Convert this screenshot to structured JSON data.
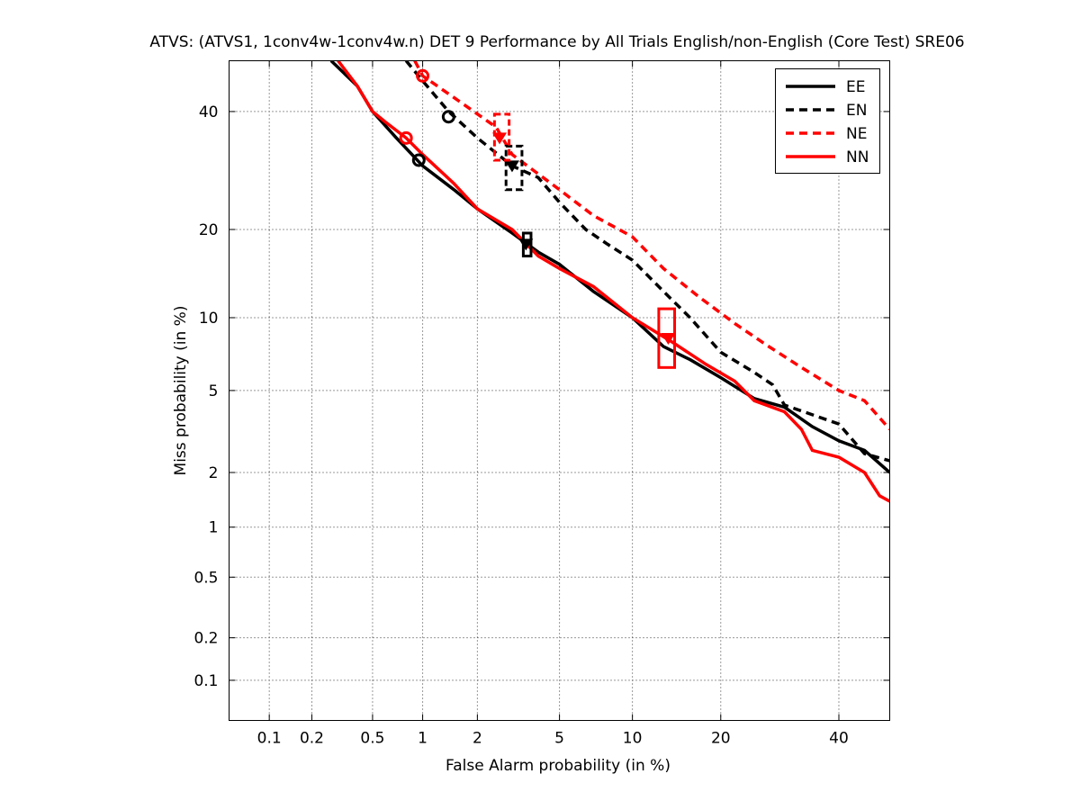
{
  "chart_data": {
    "type": "line",
    "title": "ATVS: (ATVS1, 1conv4w-1conv4w.n) DET 9 Performance by All Trials English/non-English (Core Test) SRE06",
    "xlabel": "False Alarm probability (in %)",
    "ylabel": "Miss probability (in %)",
    "xscale": "probit",
    "yscale": "probit",
    "xlim": [
      0.05,
      50
    ],
    "ylim": [
      0.05,
      50
    ],
    "xticks": [
      0.1,
      0.2,
      0.5,
      1,
      2,
      5,
      10,
      20,
      40
    ],
    "xtick_labels": [
      "0.1",
      "0.2",
      "0.5",
      "1",
      "2",
      "5",
      "10",
      "20",
      "40"
    ],
    "yticks": [
      0.1,
      0.2,
      0.5,
      1,
      2,
      5,
      10,
      20,
      40
    ],
    "ytick_labels": [
      "0.1",
      "0.2",
      "0.5",
      "1",
      "2",
      "5",
      "10",
      "20",
      "40"
    ],
    "grid": true,
    "legend_position": "top-right",
    "series": [
      {
        "name": "EE",
        "color": "#000000",
        "style": "solid",
        "points": [
          [
            0.27,
            50
          ],
          [
            0.4,
            45
          ],
          [
            0.5,
            40
          ],
          [
            0.7,
            35
          ],
          [
            1.0,
            30
          ],
          [
            1.5,
            26
          ],
          [
            2.0,
            23
          ],
          [
            3.0,
            19.5
          ],
          [
            4.0,
            17
          ],
          [
            5.0,
            15.5
          ],
          [
            7.0,
            12.5
          ],
          [
            10.0,
            10
          ],
          [
            13.0,
            7.7
          ],
          [
            16.0,
            6.8
          ],
          [
            20.0,
            5.7
          ],
          [
            25.0,
            4.6
          ],
          [
            30.0,
            4.2
          ],
          [
            35.0,
            3.4
          ],
          [
            40.0,
            2.9
          ],
          [
            45.0,
            2.6
          ],
          [
            50.0,
            2.0
          ]
        ],
        "min_dcf": [
          3.5,
          18
        ],
        "act_dcf": [
          0.95,
          31
        ],
        "conf_box": {
          "x": [
            3.4,
            3.7
          ],
          "y": [
            16.5,
            19.5
          ]
        }
      },
      {
        "name": "EN",
        "color": "#000000",
        "style": "dashed",
        "points": [
          [
            0.8,
            50
          ],
          [
            1.0,
            46
          ],
          [
            1.4,
            40
          ],
          [
            2.0,
            35
          ],
          [
            3.0,
            30
          ],
          [
            4.0,
            28
          ],
          [
            5.0,
            24
          ],
          [
            6.5,
            20
          ],
          [
            8.0,
            18
          ],
          [
            10.0,
            16
          ],
          [
            13.0,
            12.5
          ],
          [
            16.0,
            10
          ],
          [
            20.0,
            7.3
          ],
          [
            25.0,
            6.0
          ],
          [
            28.0,
            5.3
          ],
          [
            30.0,
            4.3
          ],
          [
            40.0,
            3.5
          ],
          [
            45.0,
            2.5
          ],
          [
            50.0,
            2.3
          ]
        ],
        "min_dcf": [
          3.0,
          30
        ],
        "act_dcf": [
          1.4,
          39
        ],
        "conf_box": {
          "x": [
            2.8,
            3.35
          ],
          "y": [
            26,
            33.5
          ]
        }
      },
      {
        "name": "NE",
        "color": "#ff0000",
        "style": "dashed",
        "points": [
          [
            0.9,
            50
          ],
          [
            1.0,
            47
          ],
          [
            1.6,
            42
          ],
          [
            2.5,
            37
          ],
          [
            3.0,
            32
          ],
          [
            5.0,
            26
          ],
          [
            7.0,
            22
          ],
          [
            10.0,
            19
          ],
          [
            13.0,
            15
          ],
          [
            17.0,
            12
          ],
          [
            22.0,
            9.5
          ],
          [
            27.0,
            7.8
          ],
          [
            33.0,
            6.3
          ],
          [
            40.0,
            5.0
          ],
          [
            45.0,
            4.5
          ],
          [
            50.0,
            3.3
          ]
        ],
        "min_dcf": [
          2.6,
          35
        ],
        "act_dcf": [
          1.0,
          47
        ],
        "conf_box": {
          "x": [
            2.45,
            2.9
          ],
          "y": [
            31,
            39.5
          ]
        }
      },
      {
        "name": "NN",
        "color": "#ff0000",
        "style": "solid",
        "points": [
          [
            0.3,
            50
          ],
          [
            0.4,
            45
          ],
          [
            0.5,
            40
          ],
          [
            0.6,
            38
          ],
          [
            0.8,
            35
          ],
          [
            1.0,
            32
          ],
          [
            1.5,
            27
          ],
          [
            2.0,
            23
          ],
          [
            3.0,
            20
          ],
          [
            4.0,
            16.5
          ],
          [
            5.0,
            15
          ],
          [
            7.0,
            13
          ],
          [
            10.0,
            10
          ],
          [
            14.0,
            8
          ],
          [
            18.0,
            6.5
          ],
          [
            22.0,
            5.5
          ],
          [
            25.0,
            4.5
          ],
          [
            30.0,
            4.0
          ],
          [
            33.0,
            3.3
          ],
          [
            35.0,
            2.6
          ],
          [
            40.0,
            2.4
          ],
          [
            45.0,
            2.0
          ],
          [
            48.0,
            1.5
          ],
          [
            50.0,
            1.4
          ]
        ],
        "min_dcf": [
          13.5,
          8.3
        ],
        "act_dcf": [
          0.8,
          35
        ],
        "conf_box": {
          "x": [
            12.5,
            14.2
          ],
          "y": [
            6.3,
            10.8
          ]
        }
      }
    ]
  }
}
